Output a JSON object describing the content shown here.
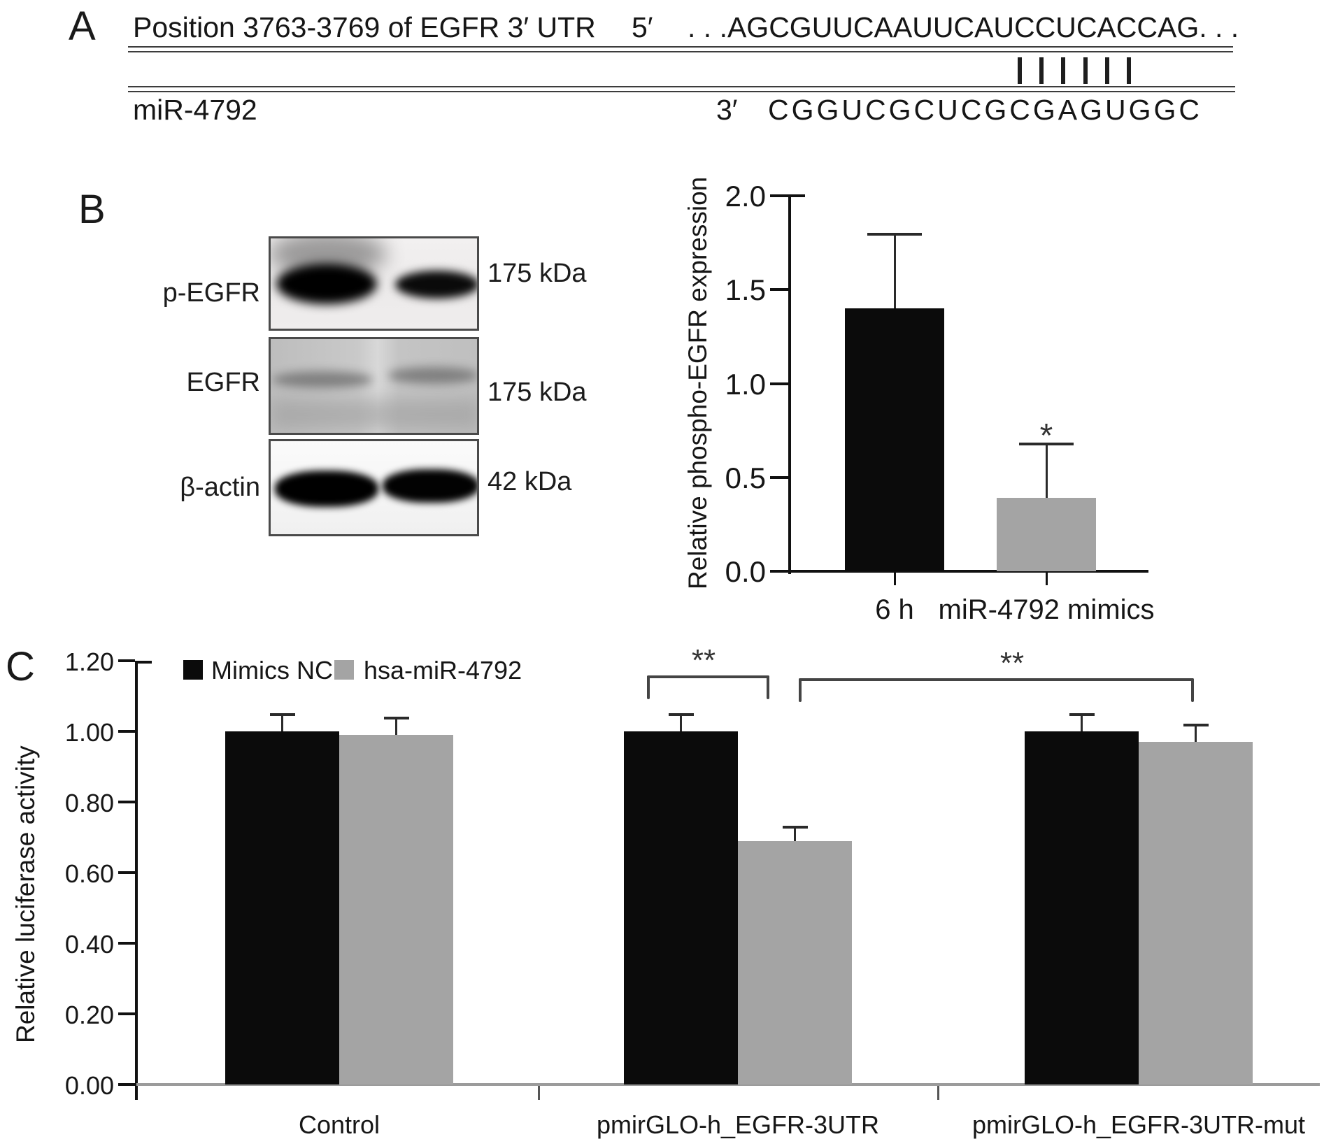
{
  "figure_labels": {
    "panel_a": "A",
    "panel_b": "B",
    "panel_c": "C"
  },
  "panel_a": {
    "position_label": "Position 3763-3769 of EGFR 3′ UTR",
    "five_prime": "5′",
    "target_sequence": ". . .AGCGUUCAAUUCAUCCUCACCAG. . .",
    "match_count": 6,
    "mirna_label": "miR-4792",
    "three_prime": "3′",
    "mirna_sequence": "CGGUCGCUCGCGAGUGGC"
  },
  "panel_b": {
    "blot_rows": [
      {
        "label": "p-EGFR",
        "size": "175 kDa"
      },
      {
        "label": "EGFR",
        "size": "175 kDa"
      },
      {
        "label": "β-actin",
        "size": "42 kDa"
      }
    ]
  },
  "chart_data": [
    {
      "id": "phospho-egfr-expression",
      "type": "bar",
      "title": "",
      "xlabel": "",
      "ylabel": "Relative phospho-EGFR expression",
      "categories": [
        "6 h",
        "miR-4792 mimics"
      ],
      "values": [
        1.4,
        0.39
      ],
      "error_top": [
        1.8,
        0.68
      ],
      "bar_colors": [
        "#0b0b0b",
        "#a4a4a4"
      ],
      "ytick_labels": [
        "0.0",
        "0.5",
        "1.0",
        "1.5",
        "2.0"
      ],
      "ylim": [
        0,
        2.0
      ],
      "grid": "off",
      "annotations": [
        {
          "text": "*",
          "category": "miR-4792 mimics"
        }
      ]
    },
    {
      "id": "relative-luciferase-activity",
      "type": "grouped_bar",
      "title": "",
      "xlabel": "",
      "ylabel": "Relative luciferase activity",
      "categories": [
        "Control",
        "pmirGLO-h_EGFR-3UTR",
        "pmirGLO-h_EGFR-3UTR-mut"
      ],
      "series": [
        {
          "name": "Mimics NC",
          "color": "#0b0b0b",
          "values": [
            1.0,
            1.0,
            1.0
          ],
          "error_top": [
            1.05,
            1.05,
            1.05
          ]
        },
        {
          "name": "hsa-miR-4792",
          "color": "#a4a4a4",
          "values": [
            0.99,
            0.69,
            0.97
          ],
          "error_top": [
            1.04,
            0.73,
            1.02
          ]
        }
      ],
      "ytick_labels": [
        "0.00",
        "0.20",
        "0.40",
        "0.60",
        "0.80",
        "1.00",
        "1.20"
      ],
      "ylim": [
        0,
        1.2
      ],
      "grid": "off",
      "legend_position": "top-left",
      "significance": [
        {
          "text": "**",
          "between": [
            "pmirGLO-h_EGFR-3UTR: Mimics NC",
            "pmirGLO-h_EGFR-3UTR: hsa-miR-4792"
          ]
        },
        {
          "text": "**",
          "between": [
            "pmirGLO-h_EGFR-3UTR: hsa-miR-4792",
            "pmirGLO-h_EGFR-3UTR-mut"
          ]
        }
      ]
    }
  ]
}
